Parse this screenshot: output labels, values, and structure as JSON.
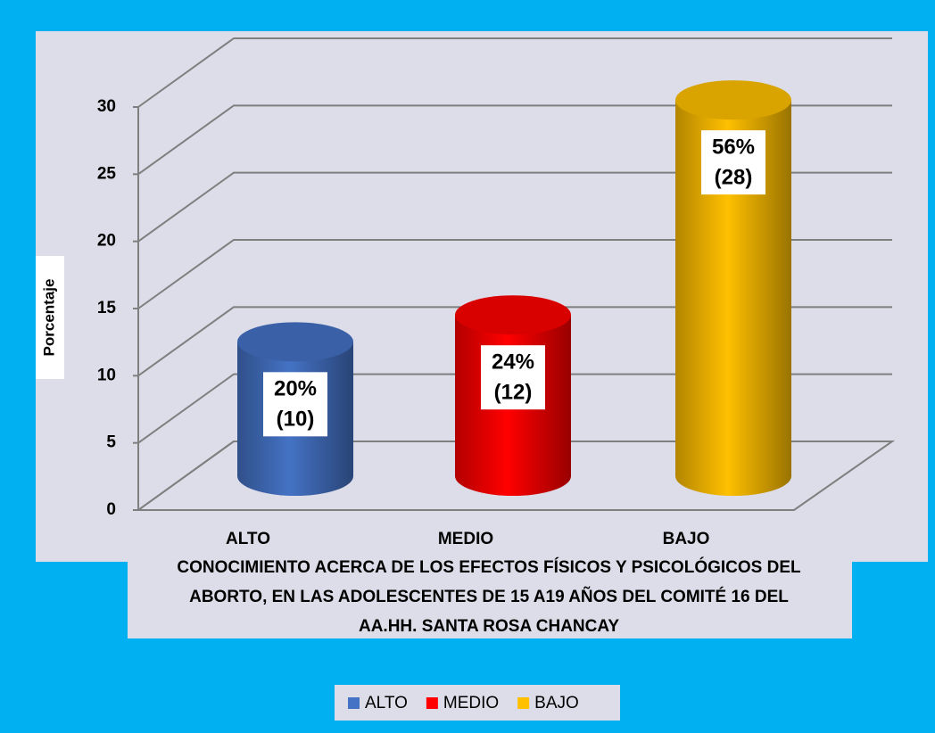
{
  "chart_data": {
    "type": "bar3d",
    "title": [
      "CONOCIMIENTO ACERCA DE LOS EFECTOS  FÍSICOS Y PSICOLÓGICOS DEL",
      "ABORTO, EN LAS ADOLESCENTES  DE 15 A19 AÑOS DEL COMITÉ 16 DEL",
      "AA.HH. SANTA ROSA CHANCAY"
    ],
    "y_label": "Porcentaje",
    "categories": [
      "ALTO",
      "MEDIO",
      "BAJO"
    ],
    "values": [
      10,
      12,
      28
    ],
    "value_labels": [
      "(10)",
      "(12)",
      "(28)"
    ],
    "percent_labels": [
      "20%",
      "24%",
      "56%"
    ],
    "colors": [
      "#4472c4",
      "#ff0000",
      "#ffc000"
    ],
    "ylim": [
      0,
      30
    ],
    "yticks": [
      0,
      5,
      10,
      15,
      20,
      25,
      30
    ],
    "grid": true,
    "legend": "bottom"
  }
}
